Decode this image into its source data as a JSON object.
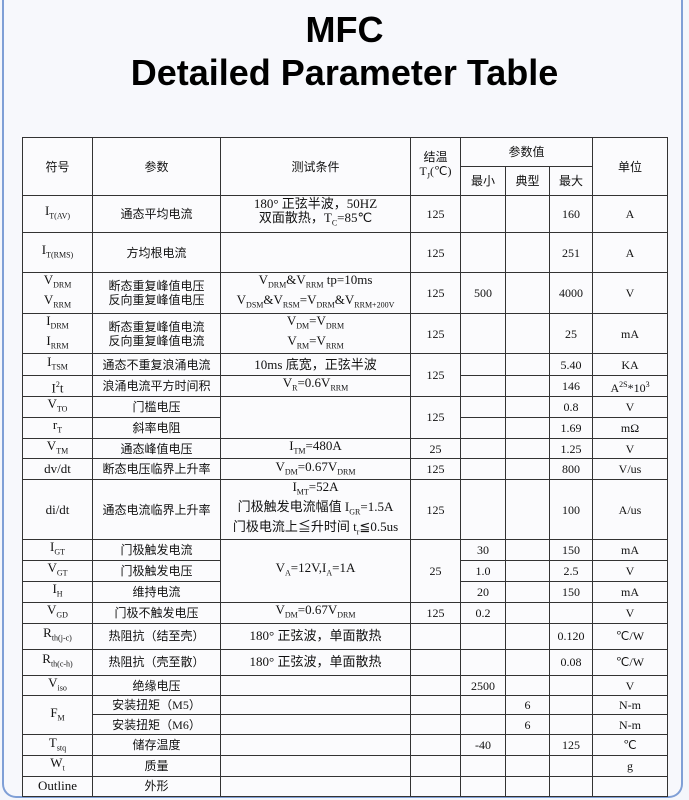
{
  "header": {
    "title_line1": "MFC",
    "title_line2": "Detailed Parameter Table"
  },
  "table": {
    "head_row1": [
      "符号",
      "参数",
      "测试条件",
      [
        [
          {
            "t": "结温"
          }
        ],
        [
          {
            "t": "T"
          },
          {
            "sub": "J"
          },
          {
            "t": "(℃)"
          }
        ]
      ],
      "参数值",
      "单位"
    ],
    "head_row2": [
      "最小",
      "典型",
      "最大"
    ],
    "rows": [
      [
        [
          [
            {
              "t": "I"
            },
            {
              "sub": "T(AV)"
            }
          ]
        ],
        "通态平均电流",
        [
          [
            {
              "t": "180° 正弦半波，50HZ"
            }
          ],
          [
            {
              "t": "双面散热，T"
            },
            {
              "sub": "C"
            },
            {
              "t": "=85℃"
            }
          ]
        ],
        "125",
        null,
        null,
        "160",
        "A"
      ],
      [
        [
          [
            {
              "t": "I"
            },
            {
              "sub": "T(RMS)"
            }
          ]
        ],
        "方均根电流",
        null,
        "125",
        null,
        null,
        "251",
        "A"
      ],
      [
        [
          [
            {
              "t": "V"
            },
            {
              "sub": "DRM"
            }
          ],
          [
            {
              "t": "V"
            },
            {
              "sub": "RRM"
            }
          ]
        ],
        [
          [
            {
              "t": "断态重复峰值电压"
            }
          ],
          [
            {
              "t": "反向重复峰值电压"
            }
          ]
        ],
        [
          [
            {
              "t": "V"
            },
            {
              "sub": "DRM"
            },
            {
              "t": "&V"
            },
            {
              "sub": "RRM"
            },
            {
              "t": " tp=10ms"
            }
          ],
          [
            {
              "t": "V"
            },
            {
              "sub": "DSM"
            },
            {
              "t": "&V"
            },
            {
              "sub": "RSM"
            },
            {
              "t": "=V"
            },
            {
              "sub": "DRM"
            },
            {
              "t": "&V"
            },
            {
              "sub": "RRM+200V"
            }
          ]
        ],
        "125",
        "500",
        null,
        "4000",
        "V"
      ],
      [
        [
          [
            {
              "t": "I"
            },
            {
              "sub": "DRM"
            }
          ],
          [
            {
              "t": "I"
            },
            {
              "sub": "RRM"
            }
          ]
        ],
        [
          [
            {
              "t": "断态重复峰值电流"
            }
          ],
          [
            {
              "t": "反向重复峰值电流"
            }
          ]
        ],
        [
          [
            {
              "t": "V"
            },
            {
              "sub": "DM"
            },
            {
              "t": "=V"
            },
            {
              "sub": "DRM"
            }
          ],
          [
            {
              "t": "V"
            },
            {
              "sub": "RM"
            },
            {
              "t": "=V"
            },
            {
              "sub": "RRM"
            }
          ]
        ],
        "125",
        null,
        null,
        "25",
        "mA"
      ],
      [
        [
          [
            {
              "t": "I"
            },
            {
              "sub": "TSM"
            }
          ]
        ],
        "通态不重复浪涌电流",
        "10ms 底宽，正弦半波",
        "125",
        null,
        null,
        "5.40",
        "KA"
      ],
      [
        [
          [
            {
              "t": "I"
            },
            {
              "sup": "2"
            },
            {
              "t": "t"
            }
          ]
        ],
        "浪涌电流平方时间积",
        [
          [
            {
              "t": "V"
            },
            {
              "sub": "R"
            },
            {
              "t": "=0.6V"
            },
            {
              "sub": "RRM"
            }
          ]
        ],
        null,
        null,
        null,
        "146",
        [
          [
            {
              "t": "A"
            },
            {
              "sup": "2S"
            },
            {
              "t": "*10"
            },
            {
              "sup": "3"
            }
          ]
        ]
      ],
      [
        [
          [
            {
              "t": "V"
            },
            {
              "sub": "TO"
            }
          ]
        ],
        "门槛电压",
        null,
        "125",
        null,
        null,
        "0.8",
        "V"
      ],
      [
        [
          [
            {
              "t": "r"
            },
            {
              "sub": "T"
            }
          ]
        ],
        "斜率电阻",
        null,
        null,
        null,
        null,
        "1.69",
        "mΩ"
      ],
      [
        [
          [
            {
              "t": "V"
            },
            {
              "sub": "TM"
            }
          ]
        ],
        "通态峰值电压",
        [
          [
            {
              "t": "I"
            },
            {
              "sub": "TM"
            },
            {
              "t": "=480A"
            }
          ]
        ],
        "25",
        null,
        null,
        "1.25",
        "V"
      ],
      [
        "dv/dt",
        "断态电压临界上升率",
        [
          [
            {
              "t": "V"
            },
            {
              "sub": "DM"
            },
            {
              "t": "=0.67V"
            },
            {
              "sub": "DRM"
            }
          ]
        ],
        "125",
        null,
        null,
        "800",
        "V/us"
      ],
      [
        "di/dt",
        "通态电流临界上升率",
        [
          [
            {
              "t": "I"
            },
            {
              "sub": "MT"
            },
            {
              "t": "=52A"
            }
          ],
          [
            {
              "t": "门极触发电流幅值 I"
            },
            {
              "sub": "GR"
            },
            {
              "t": "=1.5A"
            }
          ],
          [
            {
              "t": "门极电流上≦升时间 t"
            },
            {
              "sub": "r"
            },
            {
              "t": "≦0.5us"
            }
          ]
        ],
        "125",
        null,
        null,
        "100",
        "A/us"
      ],
      [
        [
          [
            {
              "t": "I"
            },
            {
              "sub": "GT"
            }
          ]
        ],
        "门极触发电流",
        [
          [
            {
              "t": "V"
            },
            {
              "sub": "A"
            },
            {
              "t": "=12V,I"
            },
            {
              "sub": "A"
            },
            {
              "t": "=1A"
            }
          ]
        ],
        "25",
        "30",
        null,
        "150",
        "mA"
      ],
      [
        [
          [
            {
              "t": "V"
            },
            {
              "sub": "GT"
            }
          ]
        ],
        "门极触发电压",
        null,
        null,
        "1.0",
        null,
        "2.5",
        "V"
      ],
      [
        [
          [
            {
              "t": "I"
            },
            {
              "sub": "H"
            }
          ]
        ],
        "维持电流",
        null,
        null,
        "20",
        null,
        "150",
        "mA"
      ],
      [
        [
          [
            {
              "t": "V"
            },
            {
              "sub": "GD"
            }
          ]
        ],
        "门极不触发电压",
        [
          [
            {
              "t": "V"
            },
            {
              "sub": "DM"
            },
            {
              "t": "=0.67V"
            },
            {
              "sub": "DRM"
            }
          ]
        ],
        "125",
        "0.2",
        null,
        null,
        "V"
      ],
      [
        [
          [
            {
              "t": "R"
            },
            {
              "sub": "th(j-c)"
            }
          ]
        ],
        "热阻抗（结至壳）",
        "180° 正弦波，单面散热",
        null,
        null,
        null,
        "0.120",
        "℃/W"
      ],
      [
        [
          [
            {
              "t": "R"
            },
            {
              "sub": "th(c-h)"
            }
          ]
        ],
        "热阻抗（壳至散）",
        "180° 正弦波，单面散热",
        null,
        null,
        null,
        "0.08",
        "℃/W"
      ],
      [
        [
          [
            {
              "t": "V"
            },
            {
              "sub": "iso"
            }
          ]
        ],
        "绝缘电压",
        null,
        null,
        "2500",
        null,
        null,
        "V"
      ],
      [
        [
          [
            {
              "t": "F"
            },
            {
              "sub": "M"
            }
          ]
        ],
        "安装扭矩（M5）",
        null,
        null,
        null,
        "6",
        null,
        "N-m"
      ],
      [
        null,
        "安装扭矩（M6）",
        null,
        null,
        null,
        "6",
        null,
        "N-m"
      ],
      [
        [
          [
            {
              "t": "T"
            },
            {
              "sub": "stq"
            }
          ]
        ],
        "储存温度",
        null,
        null,
        "-40",
        null,
        "125",
        "℃"
      ],
      [
        [
          [
            {
              "t": "W"
            },
            {
              "sub": "t"
            }
          ]
        ],
        "质量",
        null,
        null,
        null,
        null,
        null,
        "g"
      ],
      [
        "Outline",
        "外形",
        null,
        null,
        null,
        null,
        null,
        null
      ]
    ]
  }
}
